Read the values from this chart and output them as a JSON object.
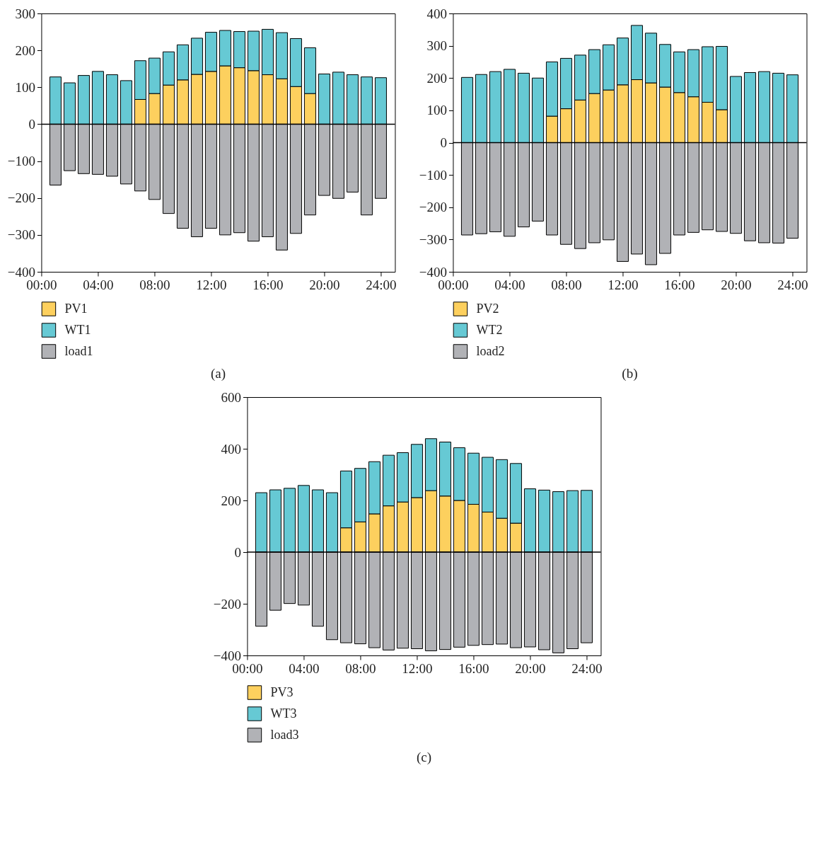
{
  "chart_data": [
    {
      "type": "bar",
      "stacked": true,
      "x": [
        1,
        2,
        3,
        4,
        5,
        6,
        7,
        8,
        9,
        10,
        11,
        12,
        13,
        14,
        15,
        16,
        17,
        18,
        19,
        20,
        21,
        22,
        23,
        24
      ],
      "xlim": [
        0,
        25
      ],
      "xticks": [
        {
          "value": 0,
          "label": "00:00"
        },
        {
          "value": 4,
          "label": "04:00"
        },
        {
          "value": 8,
          "label": "08:00"
        },
        {
          "value": 12,
          "label": "12:00"
        },
        {
          "value": 16,
          "label": "16:00"
        },
        {
          "value": 20,
          "label": "20:00"
        },
        {
          "value": 24,
          "label": "24:00"
        }
      ],
      "ylim": [
        -400,
        300
      ],
      "yticks": [
        -400,
        -300,
        -200,
        -100,
        0,
        100,
        200,
        300
      ],
      "grid": false,
      "legend": "bottom left",
      "annotations": [
        "(a)"
      ],
      "ref_lines": [
        {
          "axis": "y",
          "value": 0,
          "color": "#000000"
        }
      ],
      "series": [
        {
          "name": "PV1",
          "color": "#fdd05e",
          "values": [
            null,
            null,
            null,
            null,
            null,
            null,
            67,
            83,
            106,
            120,
            135,
            143,
            158,
            153,
            145,
            134,
            123,
            102,
            83,
            null,
            null,
            null,
            null,
            null
          ]
        },
        {
          "name": "WT1",
          "color": "#66c9d4",
          "values": [
            128,
            112,
            132,
            143,
            134,
            118,
            105,
            96,
            90,
            95,
            98,
            106,
            96,
            98,
            107,
            123,
            125,
            130,
            124,
            136,
            141,
            134,
            128,
            126
          ]
        },
        {
          "name": "load1",
          "color": "#b1b2b6",
          "values": [
            -165,
            -126,
            -134,
            -136,
            -141,
            -162,
            -181,
            -204,
            -242,
            -282,
            -305,
            -282,
            -300,
            -294,
            -317,
            -305,
            -341,
            -296,
            -246,
            -193,
            -201,
            -184,
            -246,
            -201
          ]
        }
      ]
    },
    {
      "type": "bar",
      "stacked": true,
      "x": [
        1,
        2,
        3,
        4,
        5,
        6,
        7,
        8,
        9,
        10,
        11,
        12,
        13,
        14,
        15,
        16,
        17,
        18,
        19,
        20,
        21,
        22,
        23,
        24
      ],
      "xlim": [
        0,
        25
      ],
      "xticks": [
        {
          "value": 0,
          "label": "00:00"
        },
        {
          "value": 4,
          "label": "04:00"
        },
        {
          "value": 8,
          "label": "08:00"
        },
        {
          "value": 12,
          "label": "12:00"
        },
        {
          "value": 16,
          "label": "16:00"
        },
        {
          "value": 20,
          "label": "20:00"
        },
        {
          "value": 24,
          "label": "24:00"
        }
      ],
      "ylim": [
        -400,
        400
      ],
      "yticks": [
        -400,
        -300,
        -200,
        -100,
        0,
        100,
        200,
        300,
        400
      ],
      "grid": false,
      "legend": "bottom left",
      "annotations": [
        "(b)"
      ],
      "ref_lines": [
        {
          "axis": "y",
          "value": 0,
          "color": "#000000"
        }
      ],
      "series": [
        {
          "name": "PV2",
          "color": "#fdd05e",
          "values": [
            null,
            null,
            null,
            null,
            null,
            null,
            82,
            105,
            132,
            152,
            163,
            179,
            195,
            185,
            172,
            155,
            142,
            125,
            102,
            null,
            null,
            null,
            null,
            null
          ]
        },
        {
          "name": "WT2",
          "color": "#66c9d4",
          "values": [
            202,
            211,
            220,
            227,
            215,
            200,
            168,
            156,
            139,
            136,
            140,
            145,
            168,
            154,
            132,
            126,
            146,
            172,
            196,
            205,
            217,
            220,
            215,
            210
          ]
        },
        {
          "name": "load2",
          "color": "#b1b2b6",
          "values": [
            -286,
            -282,
            -276,
            -290,
            -261,
            -243,
            -286,
            -315,
            -328,
            -310,
            -301,
            -368,
            -345,
            -378,
            -343,
            -286,
            -278,
            -270,
            -275,
            -281,
            -304,
            -310,
            -311,
            -296
          ]
        }
      ]
    },
    {
      "type": "bar",
      "stacked": true,
      "x": [
        1,
        2,
        3,
        4,
        5,
        6,
        7,
        8,
        9,
        10,
        11,
        12,
        13,
        14,
        15,
        16,
        17,
        18,
        19,
        20,
        21,
        22,
        23,
        24
      ],
      "xlim": [
        0,
        25
      ],
      "xticks": [
        {
          "value": 0,
          "label": "00:00"
        },
        {
          "value": 4,
          "label": "04:00"
        },
        {
          "value": 8,
          "label": "08:00"
        },
        {
          "value": 12,
          "label": "12:00"
        },
        {
          "value": 16,
          "label": "16:00"
        },
        {
          "value": 20,
          "label": "20:00"
        },
        {
          "value": 24,
          "label": "24:00"
        }
      ],
      "ylim": [
        -400,
        600
      ],
      "yticks": [
        -400,
        -200,
        0,
        200,
        400,
        600
      ],
      "grid": false,
      "legend": "bottom left",
      "annotations": [
        "(c)"
      ],
      "ref_lines": [
        {
          "axis": "y",
          "value": 0,
          "color": "#000000"
        }
      ],
      "series": [
        {
          "name": "PV3",
          "color": "#fdd05e",
          "values": [
            null,
            null,
            null,
            null,
            null,
            null,
            94,
            117,
            148,
            179,
            194,
            211,
            238,
            217,
            200,
            185,
            155,
            131,
            112,
            null,
            null,
            null,
            null,
            null
          ]
        },
        {
          "name": "WT3",
          "color": "#66c9d4",
          "values": [
            230,
            241,
            247,
            258,
            241,
            230,
            220,
            207,
            202,
            196,
            191,
            206,
            201,
            209,
            204,
            198,
            212,
            227,
            231,
            245,
            240,
            234,
            238,
            239
          ]
        },
        {
          "name": "load3",
          "color": "#b1b2b6",
          "values": [
            -287,
            -225,
            -199,
            -205,
            -287,
            -339,
            -351,
            -355,
            -370,
            -379,
            -372,
            -374,
            -382,
            -377,
            -368,
            -361,
            -358,
            -356,
            -370,
            -367,
            -378,
            -390,
            -374,
            -351
          ]
        }
      ]
    }
  ]
}
